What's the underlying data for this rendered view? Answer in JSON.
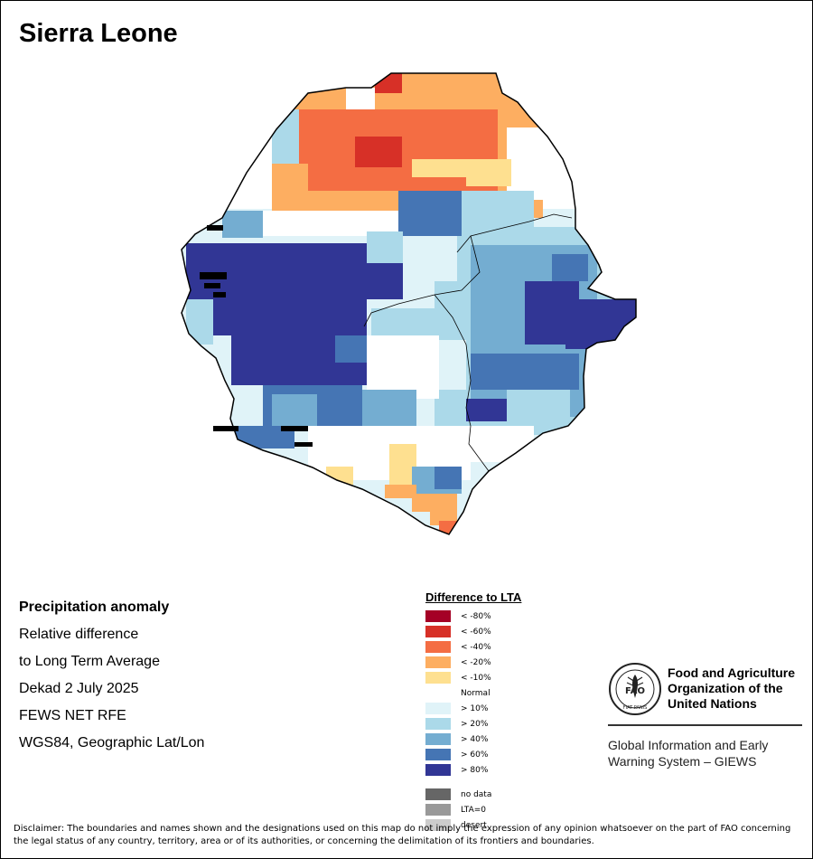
{
  "title": "Sierra Leone",
  "info": {
    "heading": "Precipitation anomaly",
    "line1": "Relative difference",
    "line2": "to Long Term Average",
    "period": "Dekad 2 July 2025",
    "source": "FEWS NET RFE",
    "projection": "WGS84, Geographic Lat/Lon"
  },
  "legend": {
    "title": "Difference to LTA",
    "classes": [
      {
        "key": "m80",
        "label": "< -80%",
        "color": "#a50026"
      },
      {
        "key": "m60",
        "label": "< -60%",
        "color": "#d73027"
      },
      {
        "key": "m40",
        "label": "< -40%",
        "color": "#f46d43"
      },
      {
        "key": "m20",
        "label": "< -20%",
        "color": "#fdae61"
      },
      {
        "key": "m10",
        "label": "< -10%",
        "color": "#fee090"
      },
      {
        "key": "norm",
        "label": "Normal",
        "color": "#ffffff"
      },
      {
        "key": "p10",
        "label": "> 10%",
        "color": "#e0f3f8"
      },
      {
        "key": "p20",
        "label": "> 20%",
        "color": "#abd9e9"
      },
      {
        "key": "p40",
        "label": "> 40%",
        "color": "#74add1"
      },
      {
        "key": "p60",
        "label": "> 60%",
        "color": "#4575b4"
      },
      {
        "key": "p80",
        "label": "> 80%",
        "color": "#313695"
      }
    ],
    "extra": [
      {
        "key": "nodata",
        "label": "no data",
        "color": "#666666"
      },
      {
        "key": "lta0",
        "label": "LTA=0",
        "color": "#999999"
      },
      {
        "key": "desert",
        "label": "desert",
        "color": "#cccccc"
      }
    ]
  },
  "fao": {
    "logo_text": "FAO",
    "motto": "FIAT PANIS",
    "name_line1": "Food and Agriculture",
    "name_line2": "Organization of the",
    "name_line3": "United Nations",
    "giews_line1": "Global Information and Early",
    "giews_line2": "Warning System – GIEWS"
  },
  "disclaimer": "Disclaimer: The boundaries and names shown and the designations used on this map do not imply the expression of any opinion whatsoever on the part of FAO concerning the legal status of any country, territory, area or of its authorities, or concerning the delimitation of its frontiers and boundaries."
}
